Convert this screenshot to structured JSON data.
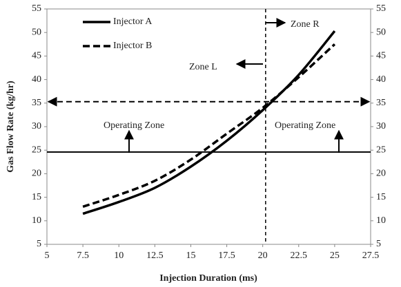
{
  "chart_data": {
    "type": "line",
    "x_label": "Injection Duration (ms)",
    "y_label": "Gas Flow Rate (kg/hr)",
    "x": [
      7.5,
      10,
      12.5,
      15,
      17.5,
      20,
      22.5,
      25
    ],
    "series": [
      {
        "name": "Injector A",
        "color": "#000000",
        "dash": "solid",
        "values": [
          11.5,
          14,
          17,
          21.5,
          27,
          33.5,
          41,
          50.3
        ]
      },
      {
        "name": "Injector B",
        "color": "#000000",
        "dash": "dashed",
        "values": [
          13,
          15.5,
          18.5,
          23,
          28.5,
          34,
          40.5,
          47.5
        ]
      }
    ],
    "xlim": [
      5,
      27.5
    ],
    "xticks": [
      5,
      7.5,
      10,
      12.5,
      15,
      17.5,
      20,
      22.5,
      25,
      27.5
    ],
    "ylim": [
      5,
      55
    ],
    "yticks": [
      5,
      10,
      15,
      20,
      25,
      30,
      35,
      40,
      45,
      50,
      55
    ],
    "y2lim": [
      5,
      55
    ],
    "y2ticks": [
      5,
      10,
      15,
      20,
      25,
      30,
      35,
      40,
      45,
      50,
      55
    ],
    "reference_lines": [
      {
        "axis": "y",
        "value": 24.6,
        "dash": "solid"
      },
      {
        "axis": "y",
        "value": 35.3,
        "dash": "dashed"
      },
      {
        "axis": "x",
        "value": 20.2,
        "dash": "dashed"
      }
    ],
    "annotations": [
      "Zone R",
      "Zone L",
      "Operating Zone",
      "Operating Zone"
    ],
    "legend": "upper left"
  }
}
